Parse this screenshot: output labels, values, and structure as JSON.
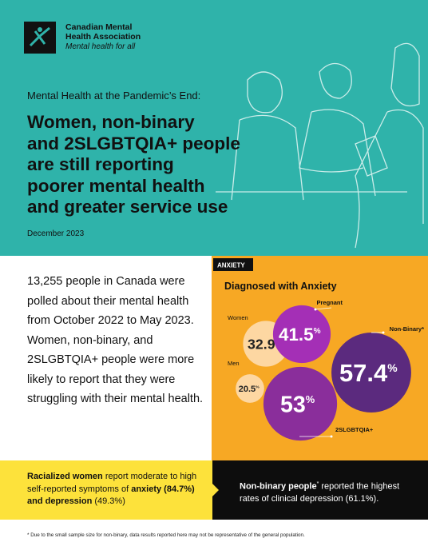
{
  "header": {
    "org_line_1": "Canadian Mental",
    "org_line_2": "Health Association",
    "tagline": "Mental health for all",
    "kicker": "Mental Health at the Pandemic’s End:",
    "title_lines": [
      "Women, non-binary",
      "and 2SLGBTQIA+ people",
      "are still reporting",
      "poorer mental health",
      "and greater service use"
    ],
    "date": "December 2023"
  },
  "intro": "13,255 people in Canada were polled about their mental health from October 2022 to May 2023. Women, non-binary, and 2SLGBTQIA+ people were more likely to report that they were struggling with their mental health.",
  "panel": {
    "tag": "ANXIETY",
    "heading": "Diagnosed with Anxiety",
    "unit": "%",
    "bubbles": [
      {
        "label": "Women",
        "value": 32.9
      },
      {
        "label": "Pregnant",
        "value": 41.5
      },
      {
        "label": "Non-Binary*",
        "value": 57.4
      },
      {
        "label": "Men",
        "value": 20.5
      },
      {
        "label": "2SLGBTQIA+",
        "value": 53
      }
    ]
  },
  "callout_left": [
    {
      "text": "Racialized women",
      "bold": true
    },
    {
      "text": " report moderate to high self-reported symptoms of ",
      "bold": false
    },
    {
      "text": "anxiety (84.7%) and depression",
      "bold": true
    },
    {
      "text": " (49.3%)",
      "bold": false
    }
  ],
  "callout_right": [
    {
      "text": "Non-binary people",
      "bold": true
    },
    {
      "text": "*",
      "sup": true
    },
    {
      "text": " reported the highest rates of clinical depression (61.1%).",
      "bold": false
    }
  ],
  "footnote": "* Due to the small sample size for non-binary, data results reported here may not be representative of the general population."
}
